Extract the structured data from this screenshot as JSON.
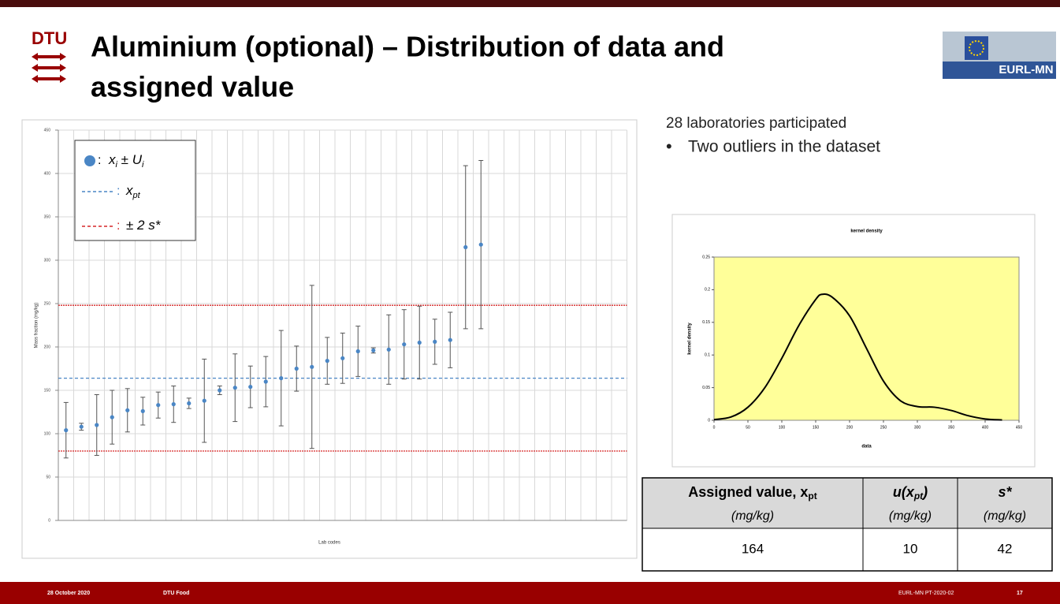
{
  "header": {
    "title_line1": "Aluminium (optional) – Distribution of data and",
    "title_line2": "assigned value",
    "logo": "DTU",
    "badge": "EURL-MN"
  },
  "notes": {
    "lead": "28 laboratories participated",
    "bullet": "Two outliers in the dataset"
  },
  "chart_data": [
    {
      "type": "errorbar",
      "y_label": "Mass fraction (mg/kg)",
      "x_label": "Lab codes",
      "categories": [
        null,
        null,
        null,
        null,
        null,
        null,
        null,
        null,
        null,
        null,
        null,
        null,
        null,
        null,
        null,
        null,
        null,
        null,
        null,
        null,
        null,
        null,
        null,
        null,
        null,
        null,
        null,
        null
      ],
      "values": [
        104,
        108,
        110,
        119,
        127,
        126,
        133,
        134,
        135,
        138,
        150,
        153,
        154,
        160,
        164,
        175,
        177,
        184,
        187,
        195,
        196,
        197,
        203,
        205,
        206,
        208,
        315,
        318
      ],
      "errors": [
        32,
        4,
        35,
        31,
        25,
        16,
        15,
        21,
        6,
        48,
        5,
        39,
        24,
        29,
        55,
        26,
        94,
        27,
        29,
        29,
        3,
        40,
        40,
        42,
        26,
        32,
        94,
        97
      ],
      "color": "#4a86c5",
      "ylim": [
        0,
        450
      ],
      "yticks": [
        0,
        50,
        100,
        150,
        200,
        250,
        300,
        350,
        400,
        450
      ],
      "grid": true,
      "reference_lines": [
        {
          "value": 164,
          "color": "#4a86c5"
        },
        {
          "value": 248,
          "color": "#d62728"
        },
        {
          "value": 80,
          "color": "#d62728"
        }
      ],
      "legend": [
        {
          "parts": [
            {
              "t": "x",
              "sub": "i"
            },
            {
              "t": " ± U",
              "sub": "i"
            }
          ]
        },
        {
          "parts": [
            {
              "t": "x",
              "sub": "pt"
            }
          ]
        },
        {
          "parts": [
            {
              "t": "± 2 s*"
            }
          ]
        }
      ]
    },
    {
      "type": "line",
      "title": "kernel density",
      "x_label": "data",
      "y_label": "kernel density",
      "x": [
        0,
        25,
        50,
        75,
        100,
        125,
        150,
        160,
        175,
        200,
        225,
        250,
        275,
        300,
        325,
        350,
        375,
        400,
        425
      ],
      "values": [
        0.001,
        0.005,
        0.02,
        0.05,
        0.095,
        0.145,
        0.185,
        0.193,
        0.188,
        0.16,
        0.11,
        0.06,
        0.03,
        0.021,
        0.02,
        0.015,
        0.007,
        0.002,
        0.0005
      ],
      "color": "#000000",
      "background": "#ffff99",
      "xlim": [
        0,
        450
      ],
      "xticks": [
        0,
        50,
        100,
        150,
        200,
        250,
        300,
        350,
        400,
        450
      ],
      "ylim": [
        0,
        0.25
      ],
      "yticks": [
        0,
        0.05,
        0.1,
        0.15,
        0.2,
        0.25
      ]
    }
  ],
  "table": {
    "header": [
      [
        {
          "t": "Assigned value, x",
          "sub": "pt"
        },
        {
          "t": "(mg/kg)"
        }
      ],
      [
        {
          "t": "u(x",
          "sub": "pt"
        },
        {
          "t": ")"
        },
        {
          "t": "(mg/kg)"
        }
      ],
      [
        {
          "t": "s*"
        },
        {
          "t": "(mg/kg)"
        }
      ]
    ],
    "rows": [
      [
        "164",
        "10",
        "42"
      ]
    ]
  },
  "footer": {
    "date": "28 October 2020",
    "org": "DTU Food",
    "code": "EURL-MN PT-2020-02",
    "page": "17"
  }
}
